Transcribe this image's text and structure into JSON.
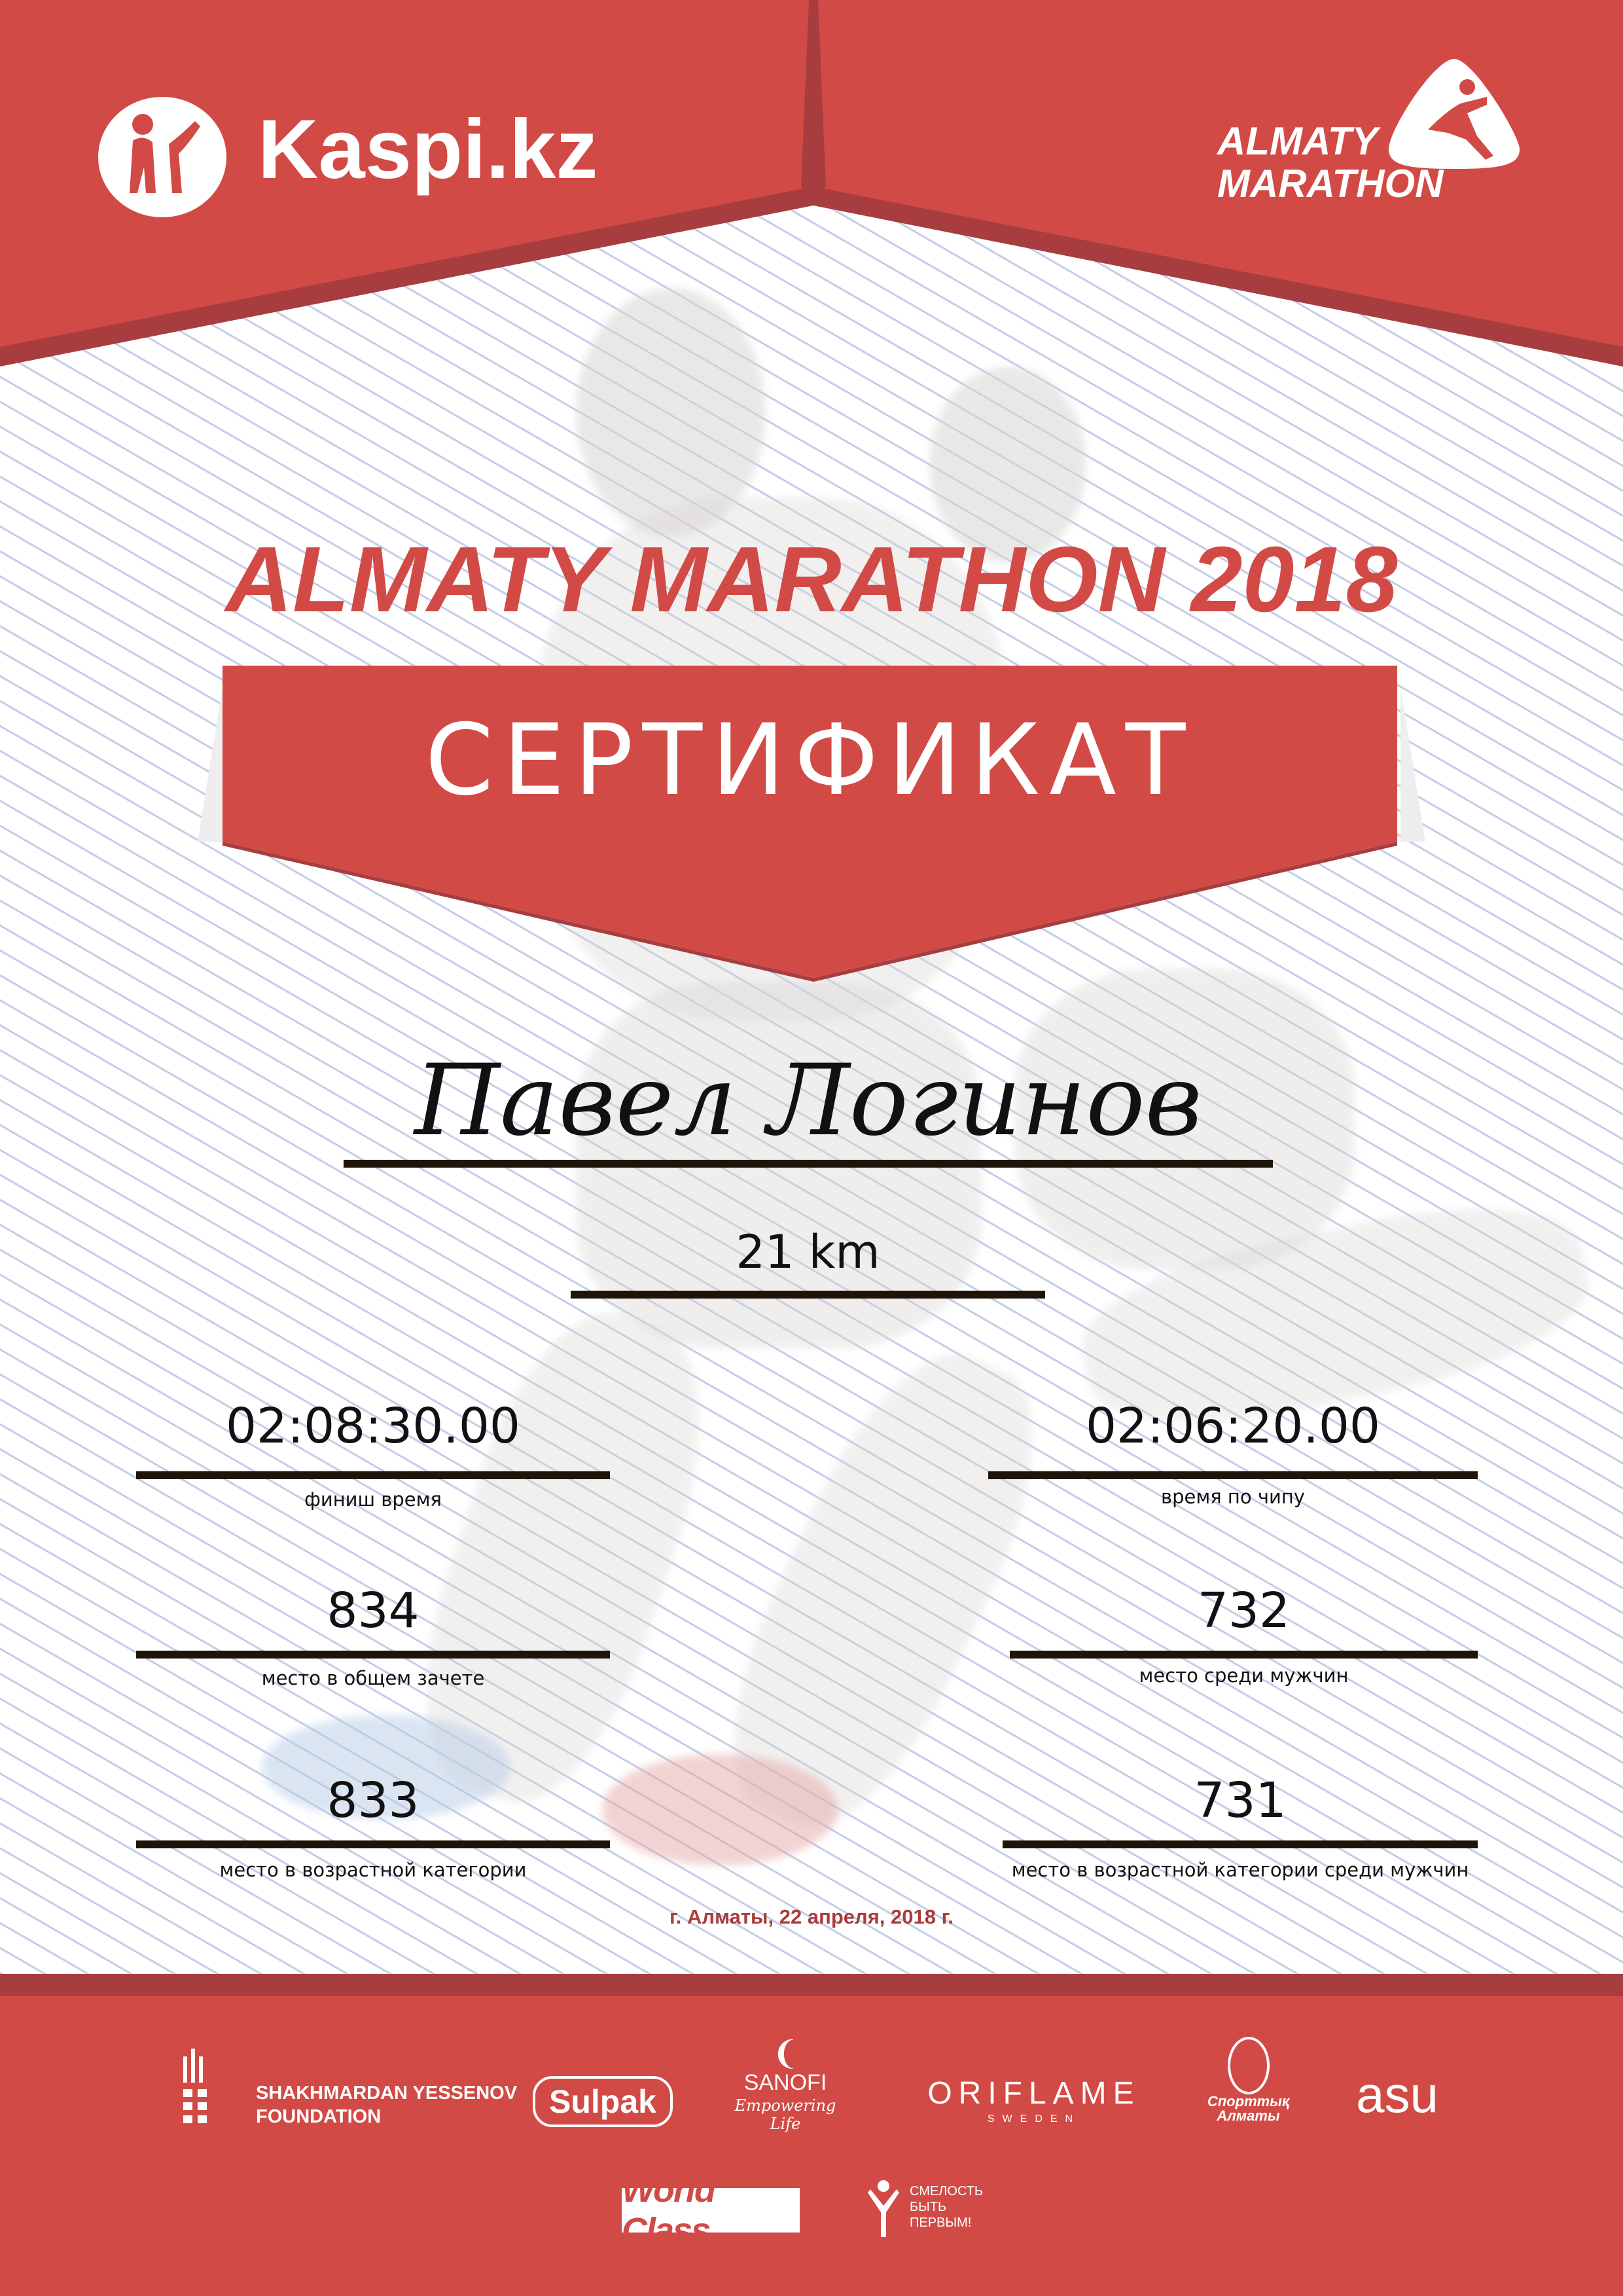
{
  "colors": {
    "brand_red": "#d24a45",
    "dark_red": "#a73d3f",
    "date_red": "#a83c3c",
    "rule": "#1f140a"
  },
  "header": {
    "left_logo": {
      "text": "Kaspi.kz",
      "icon": "kaspi-logo-icon"
    },
    "right_logo": {
      "line1": "ALMATY",
      "line2": "MARATHON",
      "icon": "runner-drop-icon"
    }
  },
  "event_title": "ALMATY MARATHON 2018",
  "certificate_label": "СЕРТИФИКАТ",
  "participant_name": "Павел Логинов",
  "distance": "21 km",
  "results": {
    "finish_time": {
      "value": "02:08:30.00",
      "label": "финиш время"
    },
    "chip_time": {
      "value": "02:06:20.00",
      "label": "время по чипу"
    },
    "overall_place": {
      "value": "834",
      "label": "место в общем зачете"
    },
    "male_place": {
      "value": "732",
      "label": "место среди мужчин"
    },
    "age_place": {
      "value": "833",
      "label": "место в возрастной категории"
    },
    "age_male_place": {
      "value": "731",
      "label": "место в возрастной категории среди мужчин"
    }
  },
  "date_line": "г. Алматы, 22 апреля, 2018 г.",
  "sponsors": {
    "yessenov": {
      "line1": "SHAKHMARDAN YESSENOV",
      "line2": "FOUNDATION"
    },
    "sulpak": "Sulpak",
    "sanofi": {
      "name": "SANOFI",
      "tagline": "Empowering Life"
    },
    "oriflame": {
      "name": "ORIFLAME",
      "sub": "SWEDEN"
    },
    "sportyk": {
      "line1": "Спорттық",
      "line2": "Алматы"
    },
    "asu": "asu",
    "worldclass": "World Class",
    "smelost": {
      "line1": "СМЕЛОСТЬ",
      "line2": "БЫТЬ",
      "line3": "ПЕРВЫМ!"
    }
  }
}
